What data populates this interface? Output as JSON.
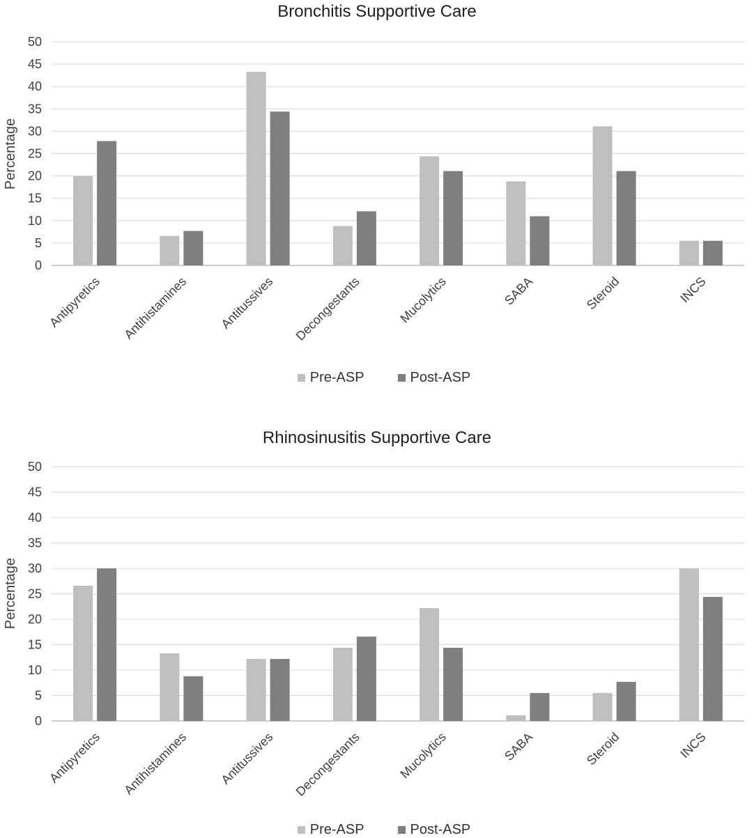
{
  "colors": {
    "pre": "#bfbfbf",
    "post": "#7f7f7f",
    "grid": "#d9d9d9",
    "axis": "#bfbfbf",
    "text": "#404040"
  },
  "chart_data": [
    {
      "type": "bar",
      "title": "Bronchitis Supportive Care",
      "xlabel": "",
      "ylabel": "Percentage",
      "ylim": [
        0,
        50
      ],
      "yticks": [
        0,
        5,
        10,
        15,
        20,
        25,
        30,
        35,
        40,
        45,
        50
      ],
      "grid": true,
      "legend_position": "bottom",
      "categories": [
        "Antipyretics",
        "Antihistamines",
        "Antitussives",
        "Decongestants",
        "Mucolytics",
        "SABA",
        "Steroid",
        "INCS"
      ],
      "series": [
        {
          "name": "Pre-ASP",
          "values": [
            20,
            6.6,
            43.3,
            8.8,
            24.4,
            18.8,
            31.1,
            5.5
          ]
        },
        {
          "name": "Post-ASP",
          "values": [
            27.8,
            7.7,
            34.4,
            12.1,
            21.1,
            11,
            21.1,
            5.5
          ]
        }
      ]
    },
    {
      "type": "bar",
      "title": "Rhinosinusitis Supportive Care",
      "xlabel": "",
      "ylabel": "Percentage",
      "ylim": [
        0,
        50
      ],
      "yticks": [
        0,
        5,
        10,
        15,
        20,
        25,
        30,
        35,
        40,
        45,
        50
      ],
      "grid": true,
      "legend_position": "bottom",
      "categories": [
        "Antipyretics",
        "Antihistamines",
        "Antitussives",
        "Decongestants",
        "Mucolytics",
        "SABA",
        "Steroid",
        "INCS"
      ],
      "series": [
        {
          "name": "Pre-ASP",
          "values": [
            26.6,
            13.3,
            12.2,
            14.4,
            22.2,
            1.1,
            5.5,
            30
          ]
        },
        {
          "name": "Post-ASP",
          "values": [
            30,
            8.8,
            12.2,
            16.6,
            14.4,
            5.5,
            7.7,
            24.4
          ]
        }
      ]
    }
  ]
}
